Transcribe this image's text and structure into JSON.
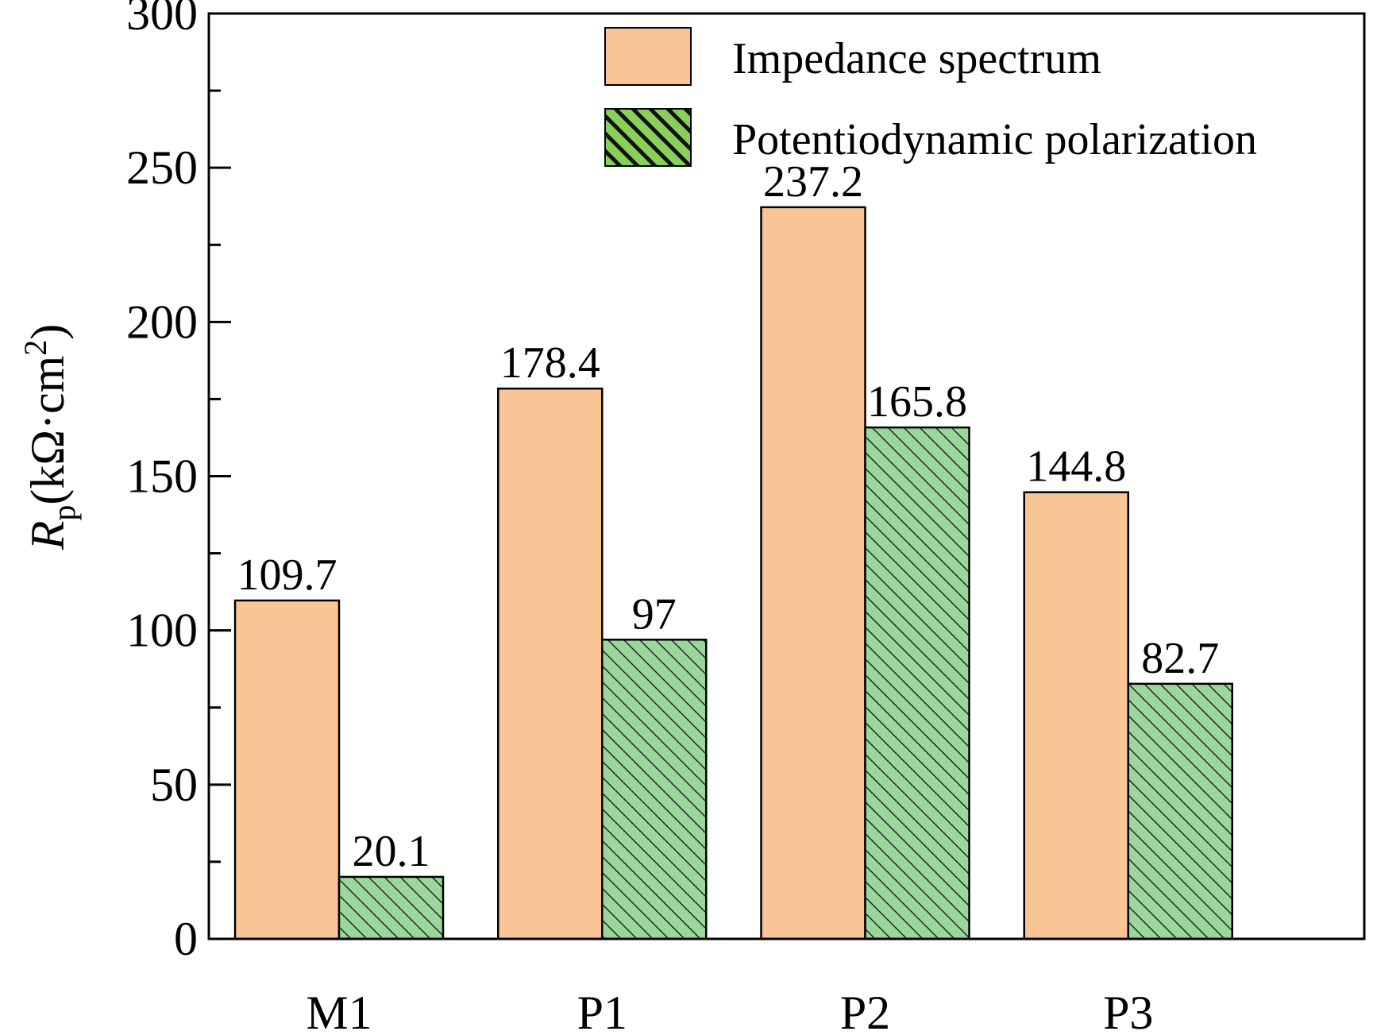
{
  "chart_data": {
    "type": "bar",
    "title": "",
    "xlabel": "",
    "ylabel": "Rp(kΩ·cm2)",
    "ylabel_parts": {
      "main": "R",
      "sub": "p",
      "unit": "(kΩ·cm",
      "sup": "2",
      "close": ")"
    },
    "ylim": [
      0,
      300
    ],
    "yticks": [
      0,
      50,
      100,
      150,
      200,
      250,
      300
    ],
    "grid": false,
    "legend_position": "top-right",
    "categories": [
      "M1",
      "P1",
      "P2",
      "P3"
    ],
    "series": [
      {
        "name": "Impedance spectrum",
        "values": [
          109.7,
          178.4,
          237.2,
          144.8
        ],
        "labels": [
          "109.7",
          "178.4",
          "237.2",
          "144.8"
        ],
        "color": "#F9C597",
        "pattern": "solid"
      },
      {
        "name": "Potentiodynamic polarization",
        "values": [
          20.1,
          97,
          165.8,
          82.7
        ],
        "labels": [
          "20.1",
          "97",
          "165.8",
          "82.7"
        ],
        "color": "#9BD79B",
        "pattern": "diagonal-hatch"
      }
    ]
  }
}
